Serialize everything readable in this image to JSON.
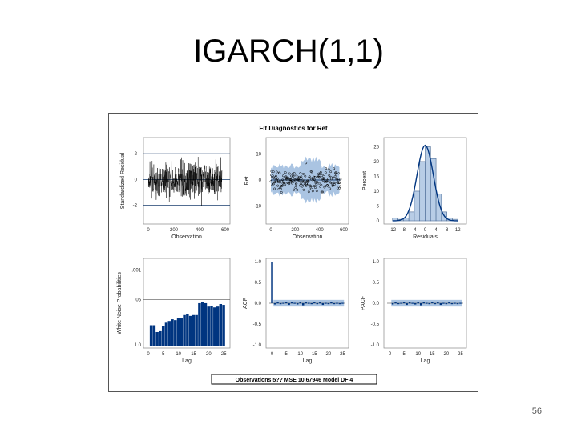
{
  "slide": {
    "title": "IGARCH(1,1)",
    "page_number": "56"
  },
  "figure": {
    "title": "Fit Diagnostics for Ret",
    "footer": "Observations 5?? MSE 10.67946 Model DF 4",
    "colors": {
      "bar_fill": "#003580",
      "band_fill": "#aac4e2",
      "hist_fill": "#b8cde6",
      "curve": "#003580",
      "ref_line": "#1a3e6e"
    }
  },
  "chart_data": [
    {
      "type": "line",
      "panel": "standardized-residual",
      "xlabel": "Observation",
      "ylabel": "Standardized Residual",
      "xlim": [
        0,
        600
      ],
      "ylim": [
        -3.2,
        3.0
      ],
      "xticks": [
        "0",
        "200",
        "400",
        "600"
      ],
      "yticks": [
        "2",
        "0",
        "-2"
      ],
      "reference_lines": [
        2,
        0,
        -2
      ],
      "n_obs": 575
    },
    {
      "type": "scatter",
      "panel": "actual-vs-predicted",
      "xlabel": "Observation",
      "ylabel": "Ret",
      "xlim": [
        0,
        600
      ],
      "ylim": [
        -15,
        15
      ],
      "xticks": [
        "0",
        "200",
        "400",
        "600"
      ],
      "yticks": [
        "10",
        "0",
        "-10"
      ],
      "band": "predicted interval"
    },
    {
      "type": "bar",
      "panel": "residual-histogram",
      "xlabel": "Residuals",
      "ylabel": "Percent",
      "xlim": [
        -14,
        14
      ],
      "ylim": [
        0,
        27
      ],
      "xticks": [
        "-12",
        "-8",
        "-4",
        "0",
        "4",
        "8",
        "12"
      ],
      "yticks": [
        "25",
        "20",
        "15",
        "10",
        "5",
        "0"
      ],
      "bin_edges": [
        -12,
        -10,
        -8,
        -6,
        -4,
        -2,
        0,
        2,
        4,
        6,
        8,
        10,
        12
      ],
      "values": [
        1,
        0.5,
        1,
        3,
        10,
        20,
        25,
        21,
        9,
        3,
        1,
        0.5
      ],
      "curve": "normal"
    },
    {
      "type": "bar",
      "panel": "white-noise-probabilities",
      "xlabel": "Lag",
      "ylabel": "White Noise Probabilities",
      "xlim": [
        0,
        26
      ],
      "xticks": [
        "0",
        "5",
        "10",
        "15",
        "20",
        "25"
      ],
      "yticks": [
        ".001",
        ".05",
        "1.0"
      ],
      "reference_line": 0.05,
      "categories": [
        1,
        2,
        3,
        4,
        5,
        6,
        7,
        8,
        9,
        10,
        11,
        12,
        13,
        14,
        15,
        16,
        17,
        18,
        19,
        20,
        21,
        22,
        23,
        24,
        25
      ],
      "heights": [
        0.25,
        0.25,
        0.17,
        0.18,
        0.24,
        0.28,
        0.3,
        0.32,
        0.31,
        0.33,
        0.33,
        0.37,
        0.38,
        0.36,
        0.37,
        0.37,
        0.51,
        0.52,
        0.51,
        0.47,
        0.48,
        0.46,
        0.47,
        0.5,
        0.49
      ]
    },
    {
      "type": "bar",
      "panel": "acf",
      "xlabel": "Lag",
      "ylabel": "ACF",
      "xlim": [
        -1,
        26
      ],
      "ylim": [
        -1.0,
        1.0
      ],
      "xticks": [
        "0",
        "5",
        "10",
        "15",
        "20",
        "25"
      ],
      "yticks": [
        "1.0",
        "0.5",
        "0.0",
        "-0.5",
        "-1.0"
      ],
      "categories": [
        0,
        1,
        2,
        3,
        4,
        5,
        6,
        7,
        8,
        9,
        10,
        11,
        12,
        13,
        14,
        15,
        16,
        17,
        18,
        19,
        20,
        21,
        22,
        23,
        24,
        25
      ],
      "values": [
        1.0,
        -0.03,
        0.02,
        -0.02,
        0.01,
        0.03,
        -0.04,
        0.02,
        0.01,
        -0.03,
        0.02,
        -0.05,
        0.02,
        0.01,
        -0.02,
        0.03,
        -0.01,
        0.02,
        -0.04,
        0.01,
        -0.02,
        0.02,
        -0.01,
        0.01,
        -0.02,
        0.01
      ],
      "band": [
        -0.08,
        0.08
      ]
    },
    {
      "type": "bar",
      "panel": "pacf",
      "xlabel": "Lag",
      "ylabel": "PACF",
      "xlim": [
        -1,
        26
      ],
      "ylim": [
        -1.0,
        1.0
      ],
      "xticks": [
        "0",
        "5",
        "10",
        "15",
        "20",
        "25"
      ],
      "yticks": [
        "1.0",
        "0.5",
        "0.0",
        "-0.5",
        "-1.0"
      ],
      "categories": [
        1,
        2,
        3,
        4,
        5,
        6,
        7,
        8,
        9,
        10,
        11,
        12,
        13,
        14,
        15,
        16,
        17,
        18,
        19,
        20,
        21,
        22,
        23,
        24,
        25
      ],
      "values": [
        -0.03,
        0.02,
        -0.02,
        0.01,
        0.03,
        -0.04,
        0.02,
        0.01,
        -0.03,
        0.02,
        -0.05,
        0.02,
        0.01,
        -0.02,
        0.03,
        -0.01,
        0.02,
        -0.04,
        0.01,
        -0.02,
        0.02,
        -0.01,
        0.01,
        -0.02,
        0.01
      ],
      "band": [
        -0.08,
        0.08
      ]
    }
  ]
}
